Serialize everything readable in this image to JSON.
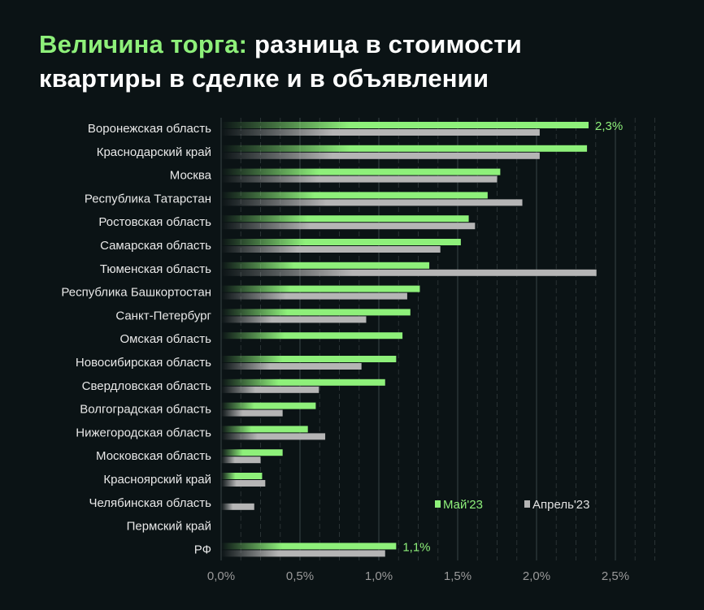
{
  "title": {
    "highlight": "Величина торга:",
    "rest_line1": "разница в стоимости",
    "line2": "квартиры в сделке и в объявлении"
  },
  "colors": {
    "may": "#8ef07a",
    "april": "#b5b5b5",
    "background": "#0b1315"
  },
  "chart_data": {
    "type": "bar",
    "orientation": "horizontal",
    "categories": [
      "Воронежская область",
      "Краснодарский край",
      "Москва",
      "Республика Татарстан",
      "Ростовская область",
      "Самарская область",
      "Тюменская область",
      "Республика Башкортостан",
      "Санкт-Петербург",
      "Омская область",
      "Новосибирская область",
      "Свердловская область",
      "Волгоградская область",
      "Нижегородская область",
      "Московская область",
      "Красноярский край",
      "Челябинская область",
      "Пермский край",
      "РФ"
    ],
    "series": [
      {
        "name": "Май'23",
        "color": "#8ef07a",
        "values": [
          2.33,
          2.32,
          1.77,
          1.69,
          1.57,
          1.52,
          1.32,
          1.26,
          1.2,
          1.15,
          1.11,
          1.04,
          0.6,
          0.55,
          0.39,
          0.26,
          null,
          null,
          1.11
        ]
      },
      {
        "name": "Апрель'23",
        "color": "#b5b5b5",
        "values": [
          2.02,
          2.02,
          1.75,
          1.91,
          1.61,
          1.39,
          2.38,
          1.18,
          0.92,
          null,
          0.89,
          0.62,
          0.39,
          0.66,
          0.25,
          0.28,
          0.21,
          null,
          1.04
        ]
      }
    ],
    "data_labels": [
      {
        "category": "Воронежская область",
        "text": "2,3%"
      },
      {
        "category": "РФ",
        "text": "1,1%"
      }
    ],
    "xlim": [
      0,
      2.5
    ],
    "x_ticks": [
      "0,0%",
      "0,5%",
      "1,0%",
      "1,5%",
      "2,0%",
      "2,5%"
    ],
    "grid": true,
    "legend": "bottom-right"
  }
}
